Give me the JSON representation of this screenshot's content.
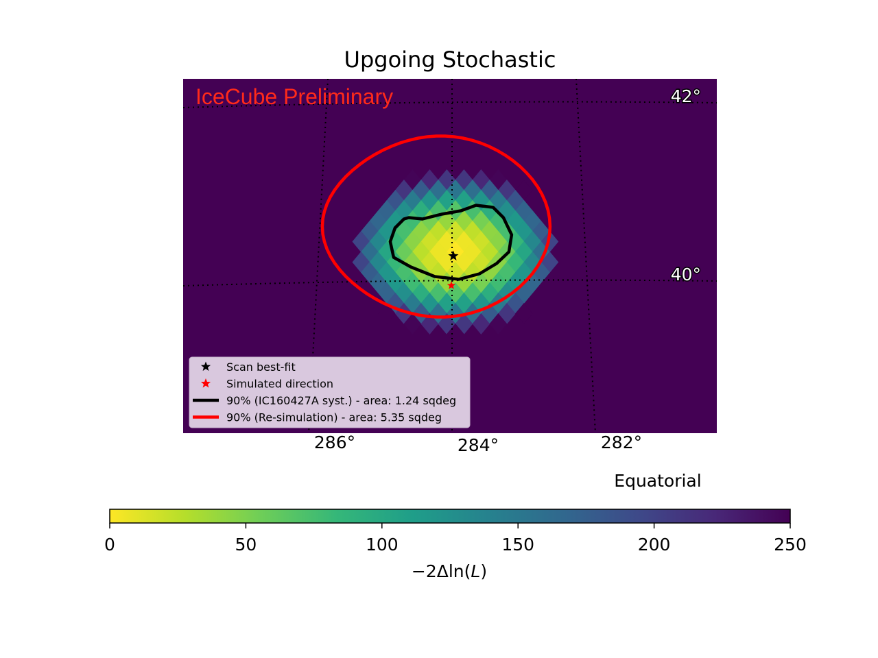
{
  "chart_data": {
    "type": "heatmap",
    "title": "Upgoing Stochastic",
    "watermark": "IceCube Preliminary",
    "frame_label": "Equatorial",
    "projection": "gnomonic sky map",
    "grid": true,
    "grid_style": "dotted",
    "ra_ticks": [
      {
        "value": 286,
        "label": "286$^\\circ$",
        "text": "286°"
      },
      {
        "value": 284,
        "label": "284°",
        "text": "284°"
      },
      {
        "value": 282,
        "label": "282°",
        "text": "282°"
      }
    ],
    "dec_ticks": [
      {
        "value": 42,
        "text": "42°"
      },
      {
        "value": 40,
        "text": "40°"
      }
    ],
    "colorbar": {
      "label": "−2Δln(L)",
      "label_main": "−2Δln(",
      "label_var": "L",
      "label_close": ")",
      "range": [
        0,
        250
      ],
      "ticks": [
        "0",
        "50",
        "100",
        "150",
        "200",
        "250"
      ],
      "colormap": "viridis (reversed)",
      "colors": [
        "#fde725",
        "#b5de2b",
        "#6ece58",
        "#35b779",
        "#1f9e89",
        "#26828e",
        "#31688e",
        "#3e4989",
        "#482878",
        "#440154"
      ]
    },
    "map": {
      "ra_range_shown": [
        287.9,
        280.7
      ],
      "dec_range_shown": [
        38.5,
        42.4
      ],
      "background_value": 250,
      "min_value": 0,
      "best_fit": {
        "ra": 283.95,
        "dec": 40.35
      },
      "simulated_direction": {
        "ra": 284.0,
        "dec": 40.05
      }
    },
    "legend": {
      "position": "lower-left",
      "entries": [
        {
          "label": "Scan best-fit",
          "marker": "star",
          "color": "#000000"
        },
        {
          "label": "Simulated direction",
          "marker": "star",
          "color": "#ff0000"
        },
        {
          "label": "90% (IC160427A syst.) - area: 1.24 sqdeg",
          "marker": "line",
          "color": "#000000"
        },
        {
          "label": "90% (Re-simulation) - area: 5.35 sqdeg",
          "marker": "line",
          "color": "#ff0000"
        }
      ]
    },
    "contours": [
      {
        "name": "90% (IC160427A syst.)",
        "color": "#000000",
        "area_sqdeg": 1.24
      },
      {
        "name": "90% (Re-simulation)",
        "color": "#ff0000",
        "area_sqdeg": 5.35
      }
    ]
  }
}
